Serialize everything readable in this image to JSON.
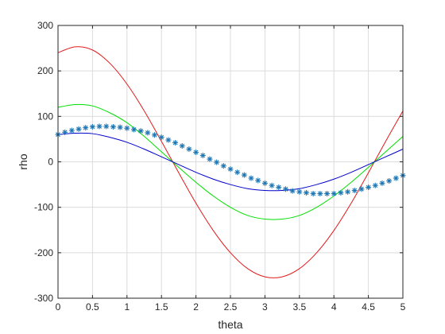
{
  "chart_data": {
    "type": "line",
    "xlabel": "theta",
    "ylabel": "rho",
    "xlim": [
      0,
      5
    ],
    "ylim": [
      -300,
      300
    ],
    "xticks": [
      0,
      0.5,
      1,
      1.5,
      2,
      2.5,
      3,
      3.5,
      4,
      4.5,
      5
    ],
    "yticks": [
      300,
      200,
      100,
      0,
      -100,
      -200,
      -300
    ],
    "xtick_labels": [
      "0",
      "0.5",
      "1",
      "1.5",
      "2",
      "2.5",
      "3",
      "3.5",
      "4",
      "4.5",
      "5"
    ],
    "ytick_labels": [
      "300",
      "200",
      "100",
      "0",
      "-100",
      "-200",
      "-300"
    ],
    "grid": true,
    "box": true,
    "x": [
      0,
      0.25,
      0.5,
      0.75,
      1,
      1.25,
      1.5,
      1.75,
      2,
      2.25,
      2.5,
      2.75,
      3,
      3.25,
      3.5,
      3.75,
      4,
      4.25,
      4.5,
      4.75,
      5
    ],
    "series": [
      {
        "color": "#e41a1c",
        "style": "line",
        "values": [
          240,
          253,
          246,
          217,
          171,
          112,
          45,
          -24,
          -91,
          -151,
          -200,
          -235,
          -253,
          -253,
          -235,
          -200,
          -151,
          -91,
          -24,
          45,
          112
        ]
      },
      {
        "color": "#00e000",
        "style": "line",
        "values": [
          120,
          126,
          123,
          108,
          86,
          56,
          22,
          -12,
          -45,
          -75,
          -100,
          -118,
          -126,
          -126,
          -118,
          -100,
          -75,
          -45,
          -12,
          22,
          56
        ]
      },
      {
        "color": "#0000cc",
        "style": "line",
        "values": [
          60,
          63,
          62,
          54,
          43,
          28,
          11,
          -6,
          -23,
          -38,
          -50,
          -59,
          -63,
          -63,
          -59,
          -50,
          -38,
          -23,
          -6,
          11,
          28
        ]
      },
      {
        "color": "#1f77b4",
        "style": "marker",
        "marker": "*",
        "x": [
          0,
          0.1,
          0.2,
          0.3,
          0.4,
          0.5,
          0.6,
          0.7,
          0.8,
          0.9,
          1,
          1.1,
          1.2,
          1.3,
          1.4,
          1.5,
          1.6,
          1.7,
          1.8,
          1.9,
          2,
          2.1,
          2.2,
          2.3,
          2.4,
          2.5,
          2.6,
          2.7,
          2.8,
          2.9,
          3,
          3.1,
          3.2,
          3.3,
          3.4,
          3.5,
          3.6,
          3.7,
          3.8,
          3.9,
          4,
          4.1,
          4.2,
          4.3,
          4.4,
          4.5,
          4.6,
          4.7,
          4.8,
          4.9,
          5
        ],
        "values": [
          60,
          65,
          69,
          72,
          75,
          77,
          78,
          78,
          77,
          76,
          74,
          71,
          68,
          64,
          59,
          54,
          48,
          42,
          35,
          28,
          21,
          14,
          6,
          -1,
          -9,
          -16,
          -23,
          -29,
          -36,
          -41,
          -47,
          -52,
          -56,
          -60,
          -64,
          -66,
          -68,
          -70,
          -70,
          -70,
          -70,
          -68,
          -66,
          -63,
          -60,
          -56,
          -52,
          -47,
          -42,
          -36,
          -30
        ]
      }
    ]
  }
}
